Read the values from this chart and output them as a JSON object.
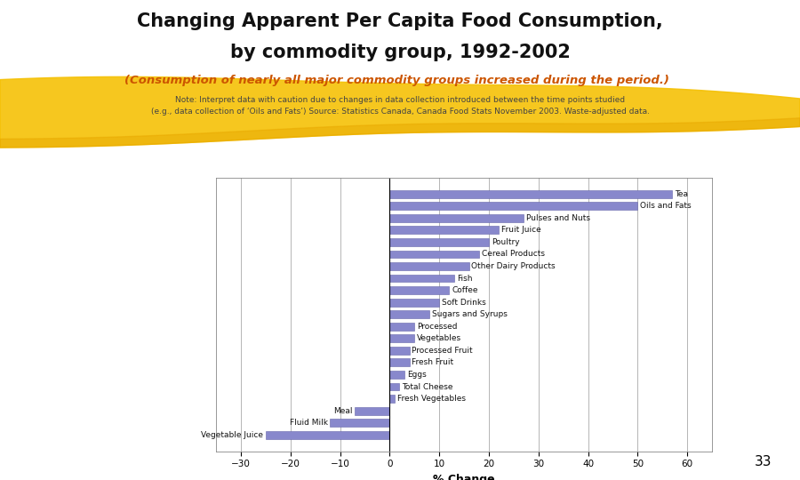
{
  "title_line1": "Changing Apparent Per Capita Food Consumption,",
  "title_line2": "by commodity group, 1992-2002",
  "subtitle": "(Consumption of nearly all major commodity groups increased during the period.)",
  "note_line1": "Note: Interpret data with caution due to changes in data collection introduced between the time points studied",
  "note_line2": "(e.g., data collection of ‘Oils and Fats’) Source: Statistics Canada, Canada Food Stats November 2003. Waste-adjusted data.",
  "xlabel": "% Change",
  "categories": [
    "Tea",
    "Oils and Fats",
    "Pulses and Nuts",
    "Fruit Juice",
    "Poultry",
    "Cereal Products",
    "Other Dairy Products",
    "Fish",
    "Coffee",
    "Soft Drinks",
    "Sugars and Syrups",
    "Processed",
    "Vegetables",
    "Processed Fruit",
    "Fresh Fruit",
    "Eggs",
    "Total Cheese",
    "Fresh Vegetables",
    "Meal",
    "Fluid Milk",
    "Vegetable Juice"
  ],
  "values": [
    57,
    50,
    27,
    22,
    20,
    18,
    16,
    13,
    12,
    10,
    8,
    5,
    5,
    4,
    4,
    3,
    2,
    1,
    -7,
    -12,
    -25
  ],
  "bar_color": "#8888CC",
  "bar_edge_color": "#6666AA",
  "xlim": [
    -35,
    65
  ],
  "xticks": [
    -30,
    -20,
    -10,
    0,
    10,
    20,
    30,
    40,
    50,
    60
  ],
  "title_color": "#111111",
  "subtitle_color": "#CC5500",
  "note_color": "#444444",
  "background_color": "#ffffff",
  "title_fontsize": 15,
  "subtitle_fontsize": 9.5,
  "note_fontsize": 6.5,
  "label_fontsize": 7,
  "tick_fontsize": 7.5,
  "page_number": "33"
}
